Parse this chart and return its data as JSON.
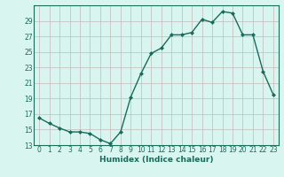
{
  "x": [
    0,
    1,
    2,
    3,
    4,
    5,
    6,
    7,
    8,
    9,
    10,
    11,
    12,
    13,
    14,
    15,
    16,
    17,
    18,
    19,
    20,
    21,
    22,
    23
  ],
  "y": [
    16.5,
    15.8,
    15.2,
    14.7,
    14.7,
    14.5,
    13.7,
    13.2,
    14.7,
    19.2,
    22.2,
    24.8,
    25.5,
    27.2,
    27.2,
    27.5,
    29.2,
    28.8,
    30.2,
    30.0,
    27.2,
    27.2,
    22.5,
    19.5
  ],
  "line_color": "#1a6b5a",
  "marker": "D",
  "marker_size": 2,
  "bg_color": "#d8f5f0",
  "grid_color": "#c4b8b8",
  "xlabel": "Humidex (Indice chaleur)",
  "xlim": [
    -0.5,
    23.5
  ],
  "ylim": [
    13,
    31
  ],
  "yticks": [
    13,
    15,
    17,
    19,
    21,
    23,
    25,
    27,
    29
  ],
  "xticks": [
    0,
    1,
    2,
    3,
    4,
    5,
    6,
    7,
    8,
    9,
    10,
    11,
    12,
    13,
    14,
    15,
    16,
    17,
    18,
    19,
    20,
    21,
    22,
    23
  ],
  "tick_color": "#1a6b5a",
  "tick_fontsize": 5.5,
  "xlabel_fontsize": 6.5,
  "linewidth": 1.0
}
